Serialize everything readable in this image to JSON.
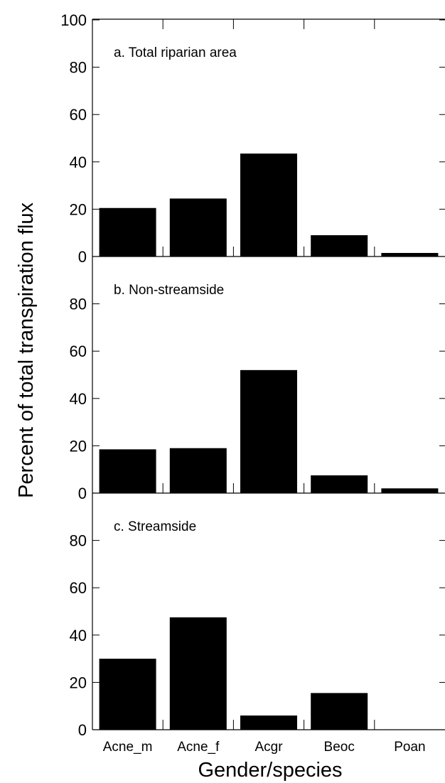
{
  "chart_data": {
    "type": "bar",
    "xlabel": "Gender/species",
    "ylabel": "Percent of total transpiration flux",
    "categories": [
      "Acne_m",
      "Acne_f",
      "Acgr",
      "Beoc",
      "Poan"
    ],
    "yticks_top": [
      "100",
      "80",
      "60",
      "40",
      "20",
      "0"
    ],
    "yticks": [
      "80",
      "60",
      "40",
      "20",
      "0"
    ],
    "ylim": [
      0,
      100
    ],
    "panels": [
      {
        "title": "a. Total riparian area",
        "values": [
          20.5,
          24.5,
          43.5,
          9,
          1.5
        ]
      },
      {
        "title": "b. Non-streamside",
        "values": [
          18.5,
          19,
          52,
          7.5,
          2
        ]
      },
      {
        "title": "c. Streamside",
        "values": [
          30,
          47.5,
          6,
          15.5,
          0
        ]
      }
    ]
  }
}
